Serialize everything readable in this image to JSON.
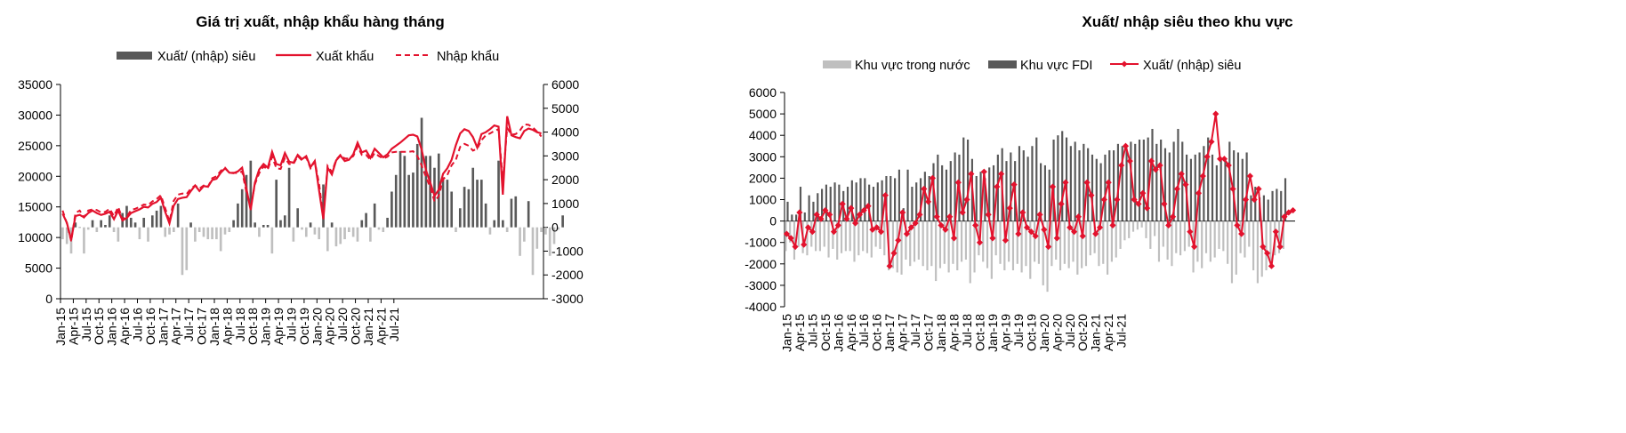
{
  "colors": {
    "dark_bar": "#595959",
    "light_bar": "#bfbfbf",
    "red": "#e3122d",
    "axis": "#000000"
  },
  "chart_data": [
    {
      "type": "bar+line",
      "title": "Giá trị xuất, nhập khẩu hàng tháng",
      "legend": [
        "Xuất/ (nhập) siêu",
        "Xuất khẩu",
        "Nhập khẩu"
      ],
      "legend_placement": "top",
      "y_left": {
        "min": 0,
        "max": 35000,
        "ticks": [
          0,
          5000,
          10000,
          15000,
          20000,
          25000,
          30000,
          35000
        ]
      },
      "y_right": {
        "min": -3000,
        "max": 6000,
        "ticks": [
          -3000,
          -2000,
          -1000,
          0,
          1000,
          2000,
          3000,
          4000,
          5000,
          6000
        ]
      },
      "grid": false,
      "x_tick_labels": [
        "Jan-15",
        "Apr-15",
        "Jul-15",
        "Oct-15",
        "Jan-16",
        "Apr-16",
        "Jul-16",
        "Oct-16",
        "Jan-17",
        "Apr-17",
        "Jul-17",
        "Oct-17",
        "Jan-18",
        "Apr-18",
        "Jul-18",
        "Oct-18",
        "Jan-19",
        "Apr-19",
        "Jul-19",
        "Oct-19",
        "Jan-20",
        "Apr-20",
        "Jul-20",
        "Oct-20",
        "Jan-21",
        "Apr-21",
        "Jul-21"
      ],
      "x_tick_every": 3,
      "series": [
        {
          "name": "Xuất/ (nhập) siêu",
          "kind": "bar",
          "axis": "right",
          "values": [
            -500,
            -700,
            -1100,
            200,
            0,
            -1100,
            -100,
            300,
            -200,
            300,
            100,
            500,
            -200,
            -600,
            600,
            900,
            400,
            200,
            -500,
            400,
            -600,
            500,
            700,
            900,
            -400,
            -300,
            -200,
            1000,
            -2000,
            -1800,
            200,
            -600,
            -200,
            -400,
            -500,
            -500,
            -500,
            -1000,
            -300,
            -200,
            300,
            1000,
            1600,
            2200,
            2800,
            200,
            -400,
            100,
            100,
            -1100,
            2000,
            300,
            500,
            2500,
            -600,
            800,
            -100,
            -400,
            200,
            -300,
            -500,
            1800,
            -1000,
            200,
            -800,
            -700,
            -500,
            -200,
            -400,
            -600,
            300,
            600,
            -600,
            1000,
            -100,
            -200,
            400,
            1500,
            2200,
            3200,
            3000,
            2200,
            2300,
            3500,
            4600,
            3000,
            3000,
            2500,
            3100,
            2100,
            2000,
            1500,
            -200,
            800,
            1700,
            1600,
            2500,
            2000,
            2000,
            1000,
            -300,
            300,
            2800,
            300,
            -200,
            1200,
            1300,
            -1200,
            -600,
            1100,
            -2000,
            -900,
            -200,
            -300,
            -1200,
            -700,
            -100,
            500
          ],
          "values_note": "monthly Jan-15..Sep-21 (approx., read from chart)"
        },
        {
          "name": "Xuất khẩu",
          "kind": "line",
          "axis": "left",
          "values": [
            13900,
            12400,
            9600,
            13500,
            13700,
            13300,
            14000,
            14400,
            14000,
            13700,
            13900,
            14200,
            13000,
            14400,
            12800,
            13200,
            14000,
            14300,
            14600,
            15000,
            14900,
            15500,
            15800,
            16500,
            14200,
            12300,
            15200,
            16300,
            16500,
            16600,
            17600,
            18500,
            17600,
            18400,
            18300,
            19400,
            19600,
            20600,
            21300,
            20600,
            20500,
            20800,
            21400,
            18000,
            14500,
            19000,
            21100,
            22000,
            21400,
            24000,
            22000,
            21800,
            23800,
            22400,
            22200,
            23500,
            22800,
            23300,
            21500,
            22500,
            17700,
            13000,
            21400,
            20300,
            22600,
            23400,
            22500,
            22700,
            23600,
            25500,
            23900,
            24200,
            23000,
            24500,
            23800,
            23100,
            23600,
            24500,
            25000,
            25500,
            26100,
            26700,
            26800,
            26500,
            24400,
            21000,
            19000,
            16800,
            17800,
            20400,
            21300,
            22700,
            25100,
            27000,
            27700,
            27400,
            26400,
            24700,
            26900,
            27200,
            27700,
            28300,
            28100,
            17000,
            29800,
            26700,
            26400,
            26200,
            27400,
            27800,
            27600,
            27200,
            27000
          ],
          "values_note": "monthly (approx.)"
        },
        {
          "name": "Nhập khẩu",
          "kind": "line",
          "axis": "left",
          "dashed": true,
          "values": [
            14400,
            12300,
            9400,
            14000,
            14400,
            13300,
            14400,
            14600,
            14500,
            14100,
            14200,
            14700,
            13500,
            15000,
            13000,
            13400,
            14500,
            14700,
            15000,
            15400,
            15300,
            15900,
            16300,
            16900,
            14800,
            12600,
            16000,
            17000,
            17200,
            17100,
            18000,
            18500,
            18000,
            18500,
            18300,
            19700,
            20000,
            20900,
            21400,
            20600,
            20600,
            20500,
            20800,
            17400,
            14900,
            18700,
            20500,
            21600,
            21100,
            23200,
            21300,
            21200,
            23000,
            22000,
            22000,
            23300,
            22600,
            23100,
            21300,
            22400,
            18800,
            13300,
            21700,
            20700,
            22700,
            23500,
            22900,
            22900,
            23300,
            24900,
            23500,
            23500,
            22700,
            23800,
            23300,
            22900,
            23200,
            23900,
            24000,
            24000,
            24000,
            24000,
            24100,
            23300,
            21800,
            19900,
            18200,
            15900,
            16800,
            19500,
            20200,
            21800,
            22700,
            24800,
            25300,
            25000,
            24200,
            24500,
            25900,
            26700,
            27000,
            27400,
            27700,
            19300,
            27900,
            26800,
            26900,
            27500,
            28500,
            28400,
            28000,
            27300,
            26500
          ],
          "values_note": "monthly (approx.)"
        }
      ]
    },
    {
      "type": "bar+line",
      "title": "Xuất/ nhập siêu theo khu vực",
      "legend": [
        "Khu vực trong nước",
        "Khu vực FDI",
        "Xuất/ (nhập) siêu"
      ],
      "legend_placement": "top",
      "y": {
        "min": -4000,
        "max": 6000,
        "ticks": [
          -4000,
          -3000,
          -2000,
          -1000,
          0,
          1000,
          2000,
          3000,
          4000,
          5000,
          6000
        ]
      },
      "grid": false,
      "x_tick_labels": [
        "Jan-15",
        "Apr-15",
        "Jul-15",
        "Oct-15",
        "Jan-16",
        "Apr-16",
        "Jul-16",
        "Oct-16",
        "Jan-17",
        "Apr-17",
        "Jul-17",
        "Oct-17",
        "Jan-18",
        "Apr-18",
        "Jul-18",
        "Oct-18",
        "Jan-19",
        "Apr-19",
        "Jul-19",
        "Oct-19",
        "Jan-20",
        "Apr-20",
        "Jul-20",
        "Oct-20",
        "Jan-21",
        "Apr-21",
        "Jul-21"
      ],
      "x_tick_every": 3,
      "series": [
        {
          "name": "Khu vực trong nước",
          "kind": "bar",
          "values": [
            -1400,
            -1000,
            -1800,
            -1200,
            -1500,
            -1600,
            -1200,
            -1400,
            -1400,
            -1200,
            -1700,
            -1300,
            -1800,
            -1500,
            -1400,
            -1400,
            -1900,
            -1600,
            -1400,
            -1500,
            -1700,
            -1200,
            -1300,
            -1600,
            -2300,
            -2200,
            -2400,
            -2500,
            -1800,
            -2100,
            -1900,
            -1800,
            -2100,
            -2300,
            -2100,
            -2800,
            -2200,
            -2000,
            -2400,
            -2000,
            -2300,
            -1900,
            -1800,
            -2900,
            -2400,
            -1600,
            -1900,
            -2200,
            -2700,
            -1600,
            -2000,
            -2300,
            -1900,
            -2300,
            -2000,
            -2400,
            -2100,
            -2700,
            -1900,
            -2000,
            -3000,
            -3300,
            -2100,
            -1800,
            -2300,
            -2000,
            -2200,
            -1900,
            -2500,
            -2200,
            -2100,
            -1600,
            -1500,
            -2100,
            -2000,
            -2500,
            -1900,
            -1700,
            -1300,
            -900,
            -800,
            -500,
            -400,
            -300,
            -800,
            -1300,
            -700,
            -1900,
            -1200,
            -1800,
            -2100,
            -1500,
            -1600,
            -1400,
            -1200,
            -2400,
            -1900,
            -2200,
            -1500,
            -1900,
            -1700,
            -1300,
            -1400,
            -2000,
            -2900,
            -2500,
            -1500,
            -1700,
            -1200,
            -2300,
            -2900,
            -2600,
            -2300,
            -1900,
            -1600,
            -1500,
            -1300
          ],
          "values_note": "monthly (approx.)"
        },
        {
          "name": "Khu vực FDI",
          "kind": "bar",
          "values": [
            900,
            300,
            300,
            1600,
            400,
            1200,
            900,
            1300,
            1500,
            1700,
            1600,
            1800,
            1700,
            1400,
            1600,
            1900,
            1800,
            2000,
            2000,
            1700,
            1600,
            1800,
            1900,
            2100,
            2100,
            2000,
            2400,
            600,
            2400,
            1600,
            1800,
            2000,
            2300,
            2100,
            2700,
            3100,
            2600,
            2400,
            2800,
            3200,
            3100,
            3900,
            3800,
            2900,
            2100,
            2300,
            2000,
            2500,
            2600,
            3100,
            3400,
            2800,
            3200,
            2800,
            3500,
            3300,
            3000,
            3500,
            3900,
            2700,
            2600,
            2400,
            3800,
            4000,
            4200,
            3900,
            3500,
            3700,
            3300,
            3600,
            3400,
            3100,
            2900,
            2700,
            3100,
            3300,
            3300,
            3600,
            3500,
            3400,
            3700,
            3600,
            3800,
            3800,
            3900,
            4300,
            3600,
            3800,
            3400,
            3200,
            3700,
            4300,
            3700,
            3100,
            2900,
            3100,
            3200,
            3500,
            3900,
            3100,
            2600,
            2900,
            2900,
            3700,
            3300,
            3200,
            2900,
            3200,
            1200,
            1600,
            1100,
            1200,
            1000,
            1400,
            1500,
            1400,
            2000
          ],
          "values_note": "monthly (approx.)"
        },
        {
          "name": "Xuất/ (nhập) siêu",
          "kind": "line",
          "marker": "diamond",
          "values": [
            -600,
            -800,
            -1200,
            400,
            -1100,
            -300,
            -500,
            300,
            100,
            500,
            300,
            -500,
            -200,
            800,
            100,
            600,
            -100,
            300,
            500,
            700,
            -400,
            -300,
            -500,
            1200,
            -2100,
            -1500,
            -900,
            400,
            -600,
            -300,
            -100,
            300,
            1500,
            900,
            2000,
            200,
            -200,
            -400,
            200,
            -800,
            1800,
            400,
            1000,
            2200,
            -200,
            -1000,
            2300,
            300,
            -800,
            1600,
            2200,
            -900,
            600,
            1700,
            -600,
            400,
            -300,
            -500,
            -700,
            300,
            -400,
            -1200,
            1600,
            -800,
            800,
            1800,
            -300,
            -500,
            200,
            -700,
            1800,
            1200,
            -600,
            -300,
            1000,
            1800,
            -200,
            1000,
            2600,
            3500,
            2800,
            1000,
            800,
            1300,
            600,
            2800,
            2400,
            2600,
            800,
            -200,
            200,
            1500,
            2200,
            1700,
            -500,
            -1200,
            1300,
            2100,
            3000,
            3700,
            5000,
            2900,
            2900,
            2600,
            1500,
            -200,
            -600,
            1000,
            2100,
            1000,
            1500,
            -1200,
            -1500,
            -2100,
            -500,
            -1200,
            200,
            400,
            500
          ],
          "values_note": "monthly (approx.)"
        }
      ]
    }
  ]
}
